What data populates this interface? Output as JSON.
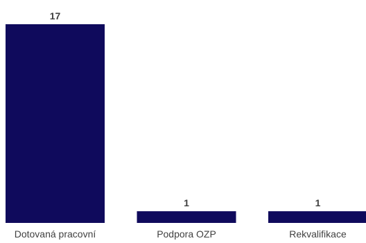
{
  "chart_data": {
    "type": "bar",
    "categories": [
      "Dotovaná pracovní",
      "Podpora OZP",
      "Rekvalifikace"
    ],
    "values": [
      17,
      1,
      1
    ],
    "data_labels": [
      "17",
      "1",
      "1"
    ],
    "ylim": [
      0,
      17
    ],
    "grid": false,
    "legend": "none",
    "bar_color": "#0f0a5c",
    "text_color": "#404040"
  }
}
